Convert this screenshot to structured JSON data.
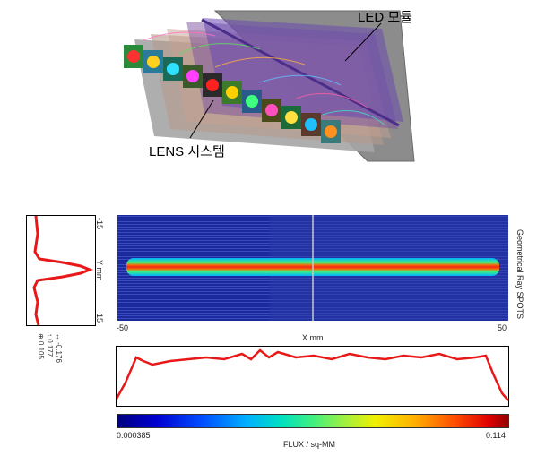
{
  "callouts": {
    "led_module": "LED 모듈",
    "lens_system": "LENS 시스템"
  },
  "heatmap": {
    "side_label": "Geometrical Ray SPOTS",
    "y_axis": {
      "label": "Y mm",
      "top_tick": "-15",
      "bottom_tick": "15"
    },
    "x_axis": {
      "label": "X mm",
      "left_tick": "-50",
      "right_tick": "50"
    }
  },
  "readouts": {
    "line1": "↔ -0.176",
    "line2": "↕ 0.177",
    "line3": "⊕ 0.105"
  },
  "colorbar": {
    "min_label": "0.000385",
    "max_label": "0.114",
    "title": "FLUX / sq-MM"
  },
  "colors": {
    "profile_line": "#e81818",
    "heat_background": "#1a2a9a",
    "beam_core": "#e82a1a"
  }
}
